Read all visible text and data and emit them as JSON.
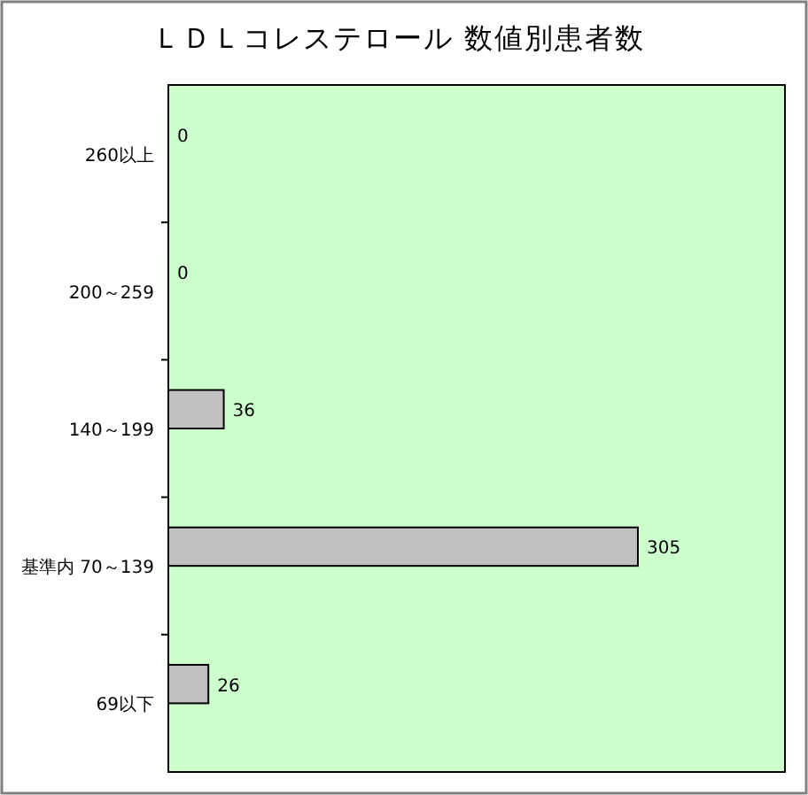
{
  "chart_data": {
    "type": "bar",
    "orientation": "horizontal",
    "title": "ＬＤＬコレステロール 数値別患者数",
    "categories": [
      "260以上",
      "200～259",
      "140～199",
      "基準内 70～139",
      "69以下"
    ],
    "values": [
      0,
      0,
      36,
      305,
      26
    ],
    "color": "#c0c0c0",
    "data_labels": true
  }
}
